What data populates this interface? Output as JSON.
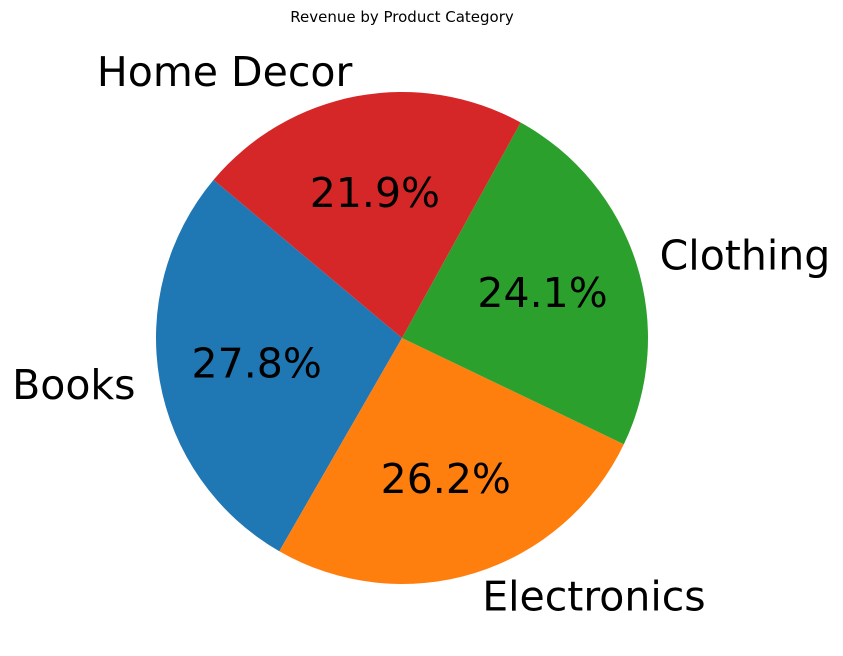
{
  "chart_data": {
    "type": "pie",
    "title": "Revenue by Product Category",
    "categories": [
      "Books",
      "Electronics",
      "Clothing",
      "Home Decor"
    ],
    "values": [
      27.8,
      26.2,
      24.1,
      21.9
    ],
    "value_labels": [
      "27.8%",
      "26.2%",
      "24.1%",
      "21.9%"
    ],
    "colors": [
      "#1f77b4",
      "#ff7f0e",
      "#2ca02c",
      "#d62728"
    ],
    "start_angle_deg": 140,
    "direction": "counterclockwise"
  }
}
